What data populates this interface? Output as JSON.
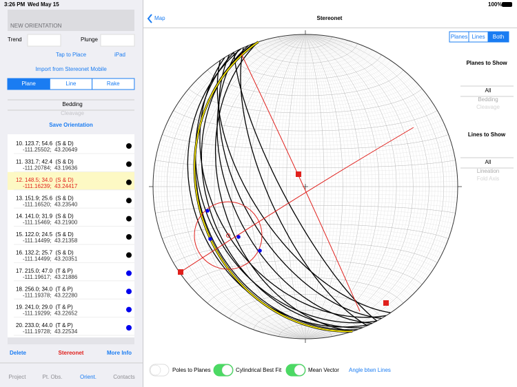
{
  "status_bar": {
    "time": "3:26 PM",
    "date": "Wed May 15",
    "battery": "100%"
  },
  "left_panel": {
    "section_title": "NEW ORIENTATION",
    "trend_label": "Trend",
    "plunge_label": "Plunge",
    "tap_to_place": "Tap to Place",
    "device": "iPad",
    "import": "Import from Stereonet Mobile",
    "segments": [
      "Plane",
      "Line",
      "Rake"
    ],
    "picker": [
      "Bedding",
      "Cleavage"
    ],
    "save": "Save Orientation",
    "rows": [
      {
        "number": "10.",
        "orientation": "123.7; 54.6  (S & D)",
        "location": "-111.25502;  43.20649",
        "dot": "#000000"
      },
      {
        "number": "11.",
        "orientation": "331.7; 42.4  (S & D)",
        "location": "-111.20784;  43.19636",
        "dot": "#000000"
      },
      {
        "number": "12.",
        "orientation": "148.5; 34.0  (S & D)",
        "location": "-111.16239;  43.24417",
        "dot": "#000000",
        "highlighted": true
      },
      {
        "number": "13.",
        "orientation": "151.9; 25.6  (S & D)",
        "location": "-111.16520;  43.23540",
        "dot": "#000000"
      },
      {
        "number": "14.",
        "orientation": "141.0; 31.9  (S & D)",
        "location": "-111.15469;  43.21900",
        "dot": "#000000"
      },
      {
        "number": "15.",
        "orientation": "122.0; 24.5  (S & D)",
        "location": "-111.14499;  43.21358",
        "dot": "#000000"
      },
      {
        "number": "16.",
        "orientation": "132.2; 25.7  (S & D)",
        "location": "-111.14499;  43.20351",
        "dot": "#000000"
      },
      {
        "number": "17.",
        "orientation": "215.0; 47.0  (T & P)",
        "location": "-111.19617;  43.21886",
        "dot": "#0000ee"
      },
      {
        "number": "18.",
        "orientation": "256.0; 34.0  (T & P)",
        "location": "-111.19378;  43.22280",
        "dot": "#0000ee"
      },
      {
        "number": "19.",
        "orientation": "241.0; 29.0  (T & P)",
        "location": "-111.19299;  43.22652",
        "dot": "#0000ee"
      },
      {
        "number": "20.",
        "orientation": "233.0; 44.0  (T & P)",
        "location": "-111.19728;  43.22534",
        "dot": "#0000ee"
      }
    ],
    "actions": [
      "Delete",
      "Stereonet",
      "More Info"
    ],
    "tabs": [
      "Project",
      "Pt. Obs.",
      "Orient.",
      "Contacts"
    ]
  },
  "right_panel": {
    "back": "Map",
    "title": "Stereonet",
    "view_segments": [
      "Planes",
      "Lines",
      "Both"
    ],
    "planes_title": "Planes to Show",
    "planes_picker": [
      "All",
      "Bedding",
      "Cleavage"
    ],
    "lines_title": "Lines to Show",
    "lines_picker": [
      "All",
      "Lineation",
      "Fold Axis"
    ],
    "toggles": [
      {
        "label": "Poles to Planes",
        "on": false
      },
      {
        "label": "Cylindrical Best Fit",
        "on": true
      },
      {
        "label": "Mean Vector",
        "on": true
      }
    ],
    "link": "Angle btwn Lines"
  }
}
